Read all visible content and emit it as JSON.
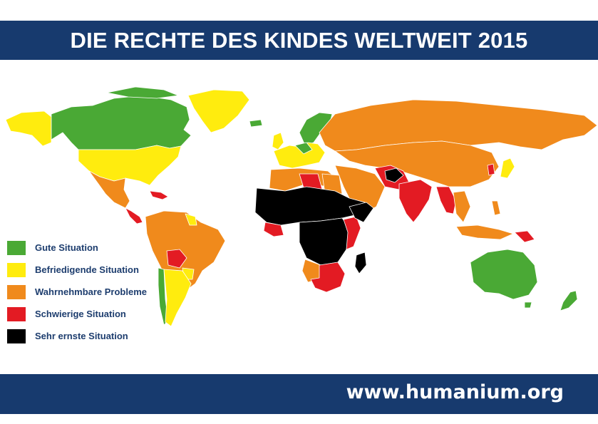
{
  "title": "DIE RECHTE DES KINDES WELTWEIT 2015",
  "website": "www.humanium.org",
  "colors": {
    "good": "#4aa935",
    "satisfactory": "#ffec0e",
    "noticeable": "#f08a1c",
    "difficult": "#e31b23",
    "very_serious": "#000000",
    "banner": "#173a6e"
  },
  "legend": [
    {
      "label": "Gute Situation",
      "color": "#4aa935"
    },
    {
      "label": "Befriedigende Situation",
      "color": "#ffec0e"
    },
    {
      "label": "Wahrnehmbare Probleme",
      "color": "#f08a1c"
    },
    {
      "label": "Schwierige Situation",
      "color": "#e31b23"
    },
    {
      "label": "Sehr ernste Situation",
      "color": "#000000"
    }
  ]
}
